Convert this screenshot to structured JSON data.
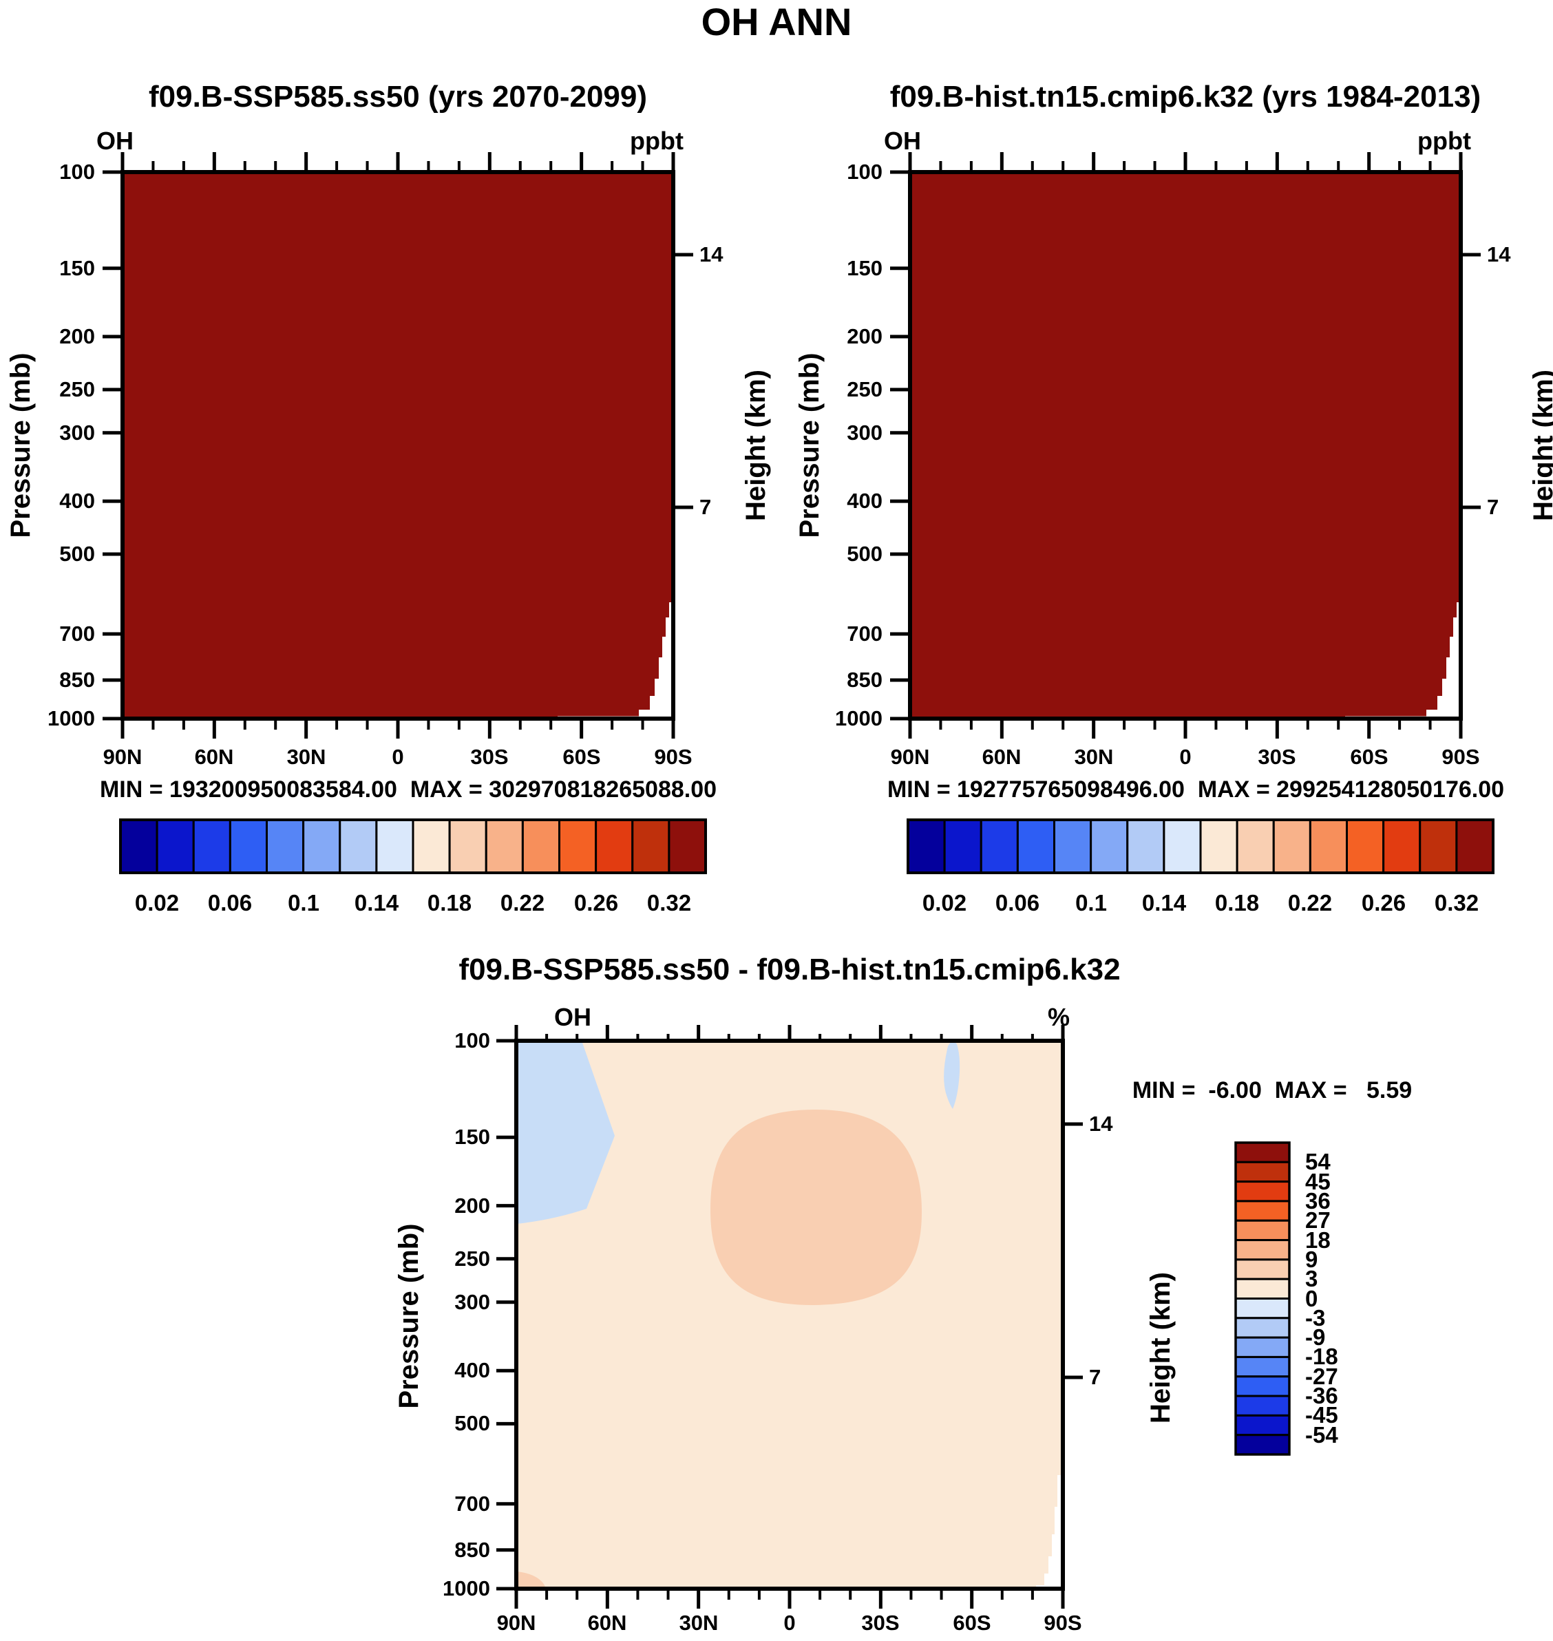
{
  "main_title": "OH ANN",
  "colors": {
    "main_fill": "#8E100C",
    "diff_bg": "#FBE9D6",
    "diff_pos": "#F9CFB2",
    "diff_neg": "#C8DDF7",
    "terrain": "#FFFFFF",
    "axis": "#000000",
    "colorbar": [
      "#04009C",
      "#0B16CC",
      "#1C3BE8",
      "#2E5EF4",
      "#5685F6",
      "#84A9F6",
      "#B2CBF6",
      "#DAE8FB",
      "#FBE9D6",
      "#F9CFB2",
      "#F8B28A",
      "#F78F5B",
      "#F46124",
      "#E23C11",
      "#BF300C",
      "#8E100C"
    ]
  },
  "panels": {
    "ssp585": {
      "title": "f09.B-SSP585.ss50 (yrs 2070-2099)",
      "field_label": "OH",
      "units_label": "ppbt",
      "stats": "MIN = 193200950083584.00  MAX = 302970818265088.00",
      "y_axis_label": "Pressure (mb)",
      "y2_axis_label": "Height (km)",
      "pressure_ticks": [
        "100",
        "150",
        "200",
        "250",
        "300",
        "400",
        "500",
        "700",
        "850",
        "1000"
      ],
      "height_ticks": [
        "14",
        "7"
      ],
      "lat_ticks": [
        "90N",
        "60N",
        "30N",
        "0",
        "30S",
        "60S",
        "90S"
      ],
      "colorbar_labels": [
        "0.02",
        "0.06",
        "0.1",
        "0.14",
        "0.18",
        "0.22",
        "0.26",
        "0.32"
      ]
    },
    "hist": {
      "title": "f09.B-hist.tn15.cmip6.k32 (yrs 1984-2013)",
      "field_label": "OH",
      "units_label": "ppbt",
      "stats": "MIN = 192775765098496.00  MAX = 299254128050176.00",
      "y_axis_label": "Pressure (mb)",
      "y2_axis_label": "Height (km)",
      "pressure_ticks": [
        "100",
        "150",
        "200",
        "250",
        "300",
        "400",
        "500",
        "700",
        "850",
        "1000"
      ],
      "height_ticks": [
        "14",
        "7"
      ],
      "lat_ticks": [
        "90N",
        "60N",
        "30N",
        "0",
        "30S",
        "60S",
        "90S"
      ],
      "colorbar_labels": [
        "0.02",
        "0.06",
        "0.1",
        "0.14",
        "0.18",
        "0.22",
        "0.26",
        "0.32"
      ]
    },
    "diff": {
      "title": "f09.B-SSP585.ss50 - f09.B-hist.tn15.cmip6.k32",
      "field_label": "OH",
      "units_label": "%",
      "stats": "MIN =  -6.00  MAX =   5.59",
      "y_axis_label": "Pressure (mb)",
      "y2_axis_label": "Height (km)",
      "pressure_ticks": [
        "100",
        "150",
        "200",
        "250",
        "300",
        "400",
        "500",
        "700",
        "850",
        "1000"
      ],
      "height_ticks": [
        "14",
        "7"
      ],
      "lat_ticks": [
        "90N",
        "60N",
        "30N",
        "0",
        "30S",
        "60S",
        "90S"
      ],
      "colorbar_labels": [
        "54",
        "45",
        "36",
        "27",
        "18",
        "9",
        "3",
        "0",
        "-3",
        "-9",
        "-18",
        "-27",
        "-36",
        "-45",
        "-54"
      ]
    }
  },
  "chart_data": [
    {
      "type": "heatmap",
      "title": "f09.B-SSP585.ss50 (yrs 2070-2099)",
      "field": "OH",
      "units": "ppbt",
      "xlabel": "latitude",
      "ylabel": "Pressure (mb)",
      "y2label": "Height (km)",
      "x_ticks": [
        "90N",
        "60N",
        "30N",
        "0",
        "30S",
        "60S",
        "90S"
      ],
      "y_ticks": [
        100,
        150,
        200,
        250,
        300,
        400,
        500,
        700,
        850,
        1000
      ],
      "y2_ticks": [
        14,
        7
      ],
      "y_scale": "log",
      "contour_level_labels": [
        0.02,
        0.06,
        0.1,
        0.14,
        0.18,
        0.22,
        0.26,
        0.32
      ],
      "colorbar_bins": 16,
      "min": 193200950083584.0,
      "max": 302970818265088.0,
      "note": "All plotted values exceed the highest contour level, so the whole section renders as the top dark-red bin; white terrain notch near 90S below ~650 mb (Antarctica)."
    },
    {
      "type": "heatmap",
      "title": "f09.B-hist.tn15.cmip6.k32 (yrs 1984-2013)",
      "field": "OH",
      "units": "ppbt",
      "xlabel": "latitude",
      "ylabel": "Pressure (mb)",
      "y2label": "Height (km)",
      "x_ticks": [
        "90N",
        "60N",
        "30N",
        "0",
        "30S",
        "60S",
        "90S"
      ],
      "y_ticks": [
        100,
        150,
        200,
        250,
        300,
        400,
        500,
        700,
        850,
        1000
      ],
      "y2_ticks": [
        14,
        7
      ],
      "y_scale": "log",
      "contour_level_labels": [
        0.02,
        0.06,
        0.1,
        0.14,
        0.18,
        0.22,
        0.26,
        0.32
      ],
      "colorbar_bins": 16,
      "min": 192775765098496.0,
      "max": 299254128050176.0,
      "note": "All plotted values exceed the highest contour level, so the whole section renders as the top dark-red bin; white terrain notch near 90S below ~650 mb (Antarctica)."
    },
    {
      "type": "contour",
      "title": "f09.B-SSP585.ss50 - f09.B-hist.tn15.cmip6.k32",
      "field": "OH",
      "units": "%",
      "xlabel": "latitude",
      "ylabel": "Pressure (mb)",
      "y2label": "Height (km)",
      "x_ticks": [
        "90N",
        "60N",
        "30N",
        "0",
        "30S",
        "60S",
        "90S"
      ],
      "y_ticks": [
        100,
        150,
        200,
        250,
        300,
        400,
        500,
        700,
        850,
        1000
      ],
      "y2_ticks": [
        14,
        7
      ],
      "y_scale": "log",
      "contour_levels": [
        -54,
        -45,
        -36,
        -27,
        -18,
        -9,
        -3,
        0,
        3,
        9,
        18,
        27,
        36,
        45,
        54
      ],
      "min": -6.0,
      "max": 5.59,
      "regions": [
        {
          "level_band": "0 to 3 %",
          "extent": "background over almost the entire section"
        },
        {
          "level_band": "3 to 9 %",
          "extent": "tropical mid/upper troposphere, roughly 25N-15S between ~140 and ~300 mb"
        },
        {
          "level_band": "3 to 9 %",
          "extent": "small near-surface patch 90N-80N below ~870 mb"
        },
        {
          "level_band": "-3 to 0 %",
          "extent": "north polar upper troposphere 90N-68N between 100 and ~210 mb"
        },
        {
          "level_band": "-3 to 0 %",
          "extent": "small teardrop near 52S between 100 and ~130 mb"
        },
        {
          "level_band": "terrain",
          "extent": "white Antarctic notch near 90S below ~700 mb"
        }
      ]
    }
  ]
}
